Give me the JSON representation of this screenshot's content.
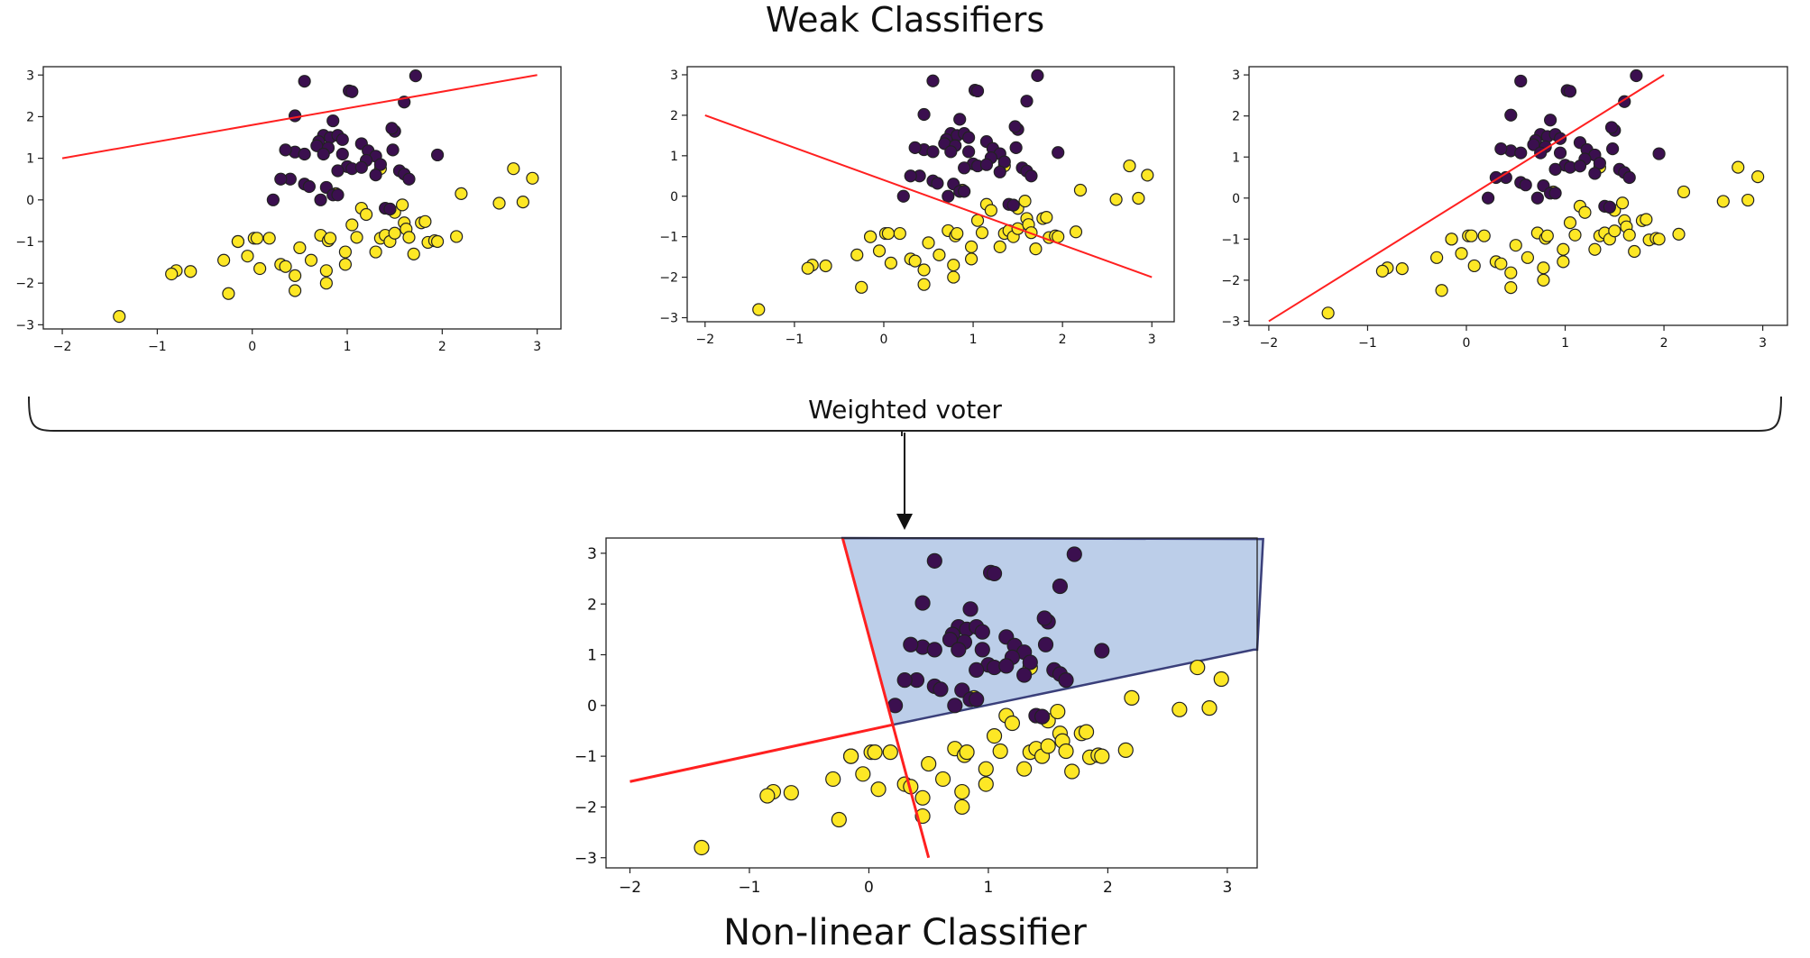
{
  "figure": {
    "title": "Weak Classifiers",
    "connector_label": "Weighted voter",
    "bottom_title": "Non-linear Classifier"
  },
  "colors": {
    "class_dark": "#3b0f4f",
    "class_light": "#fde725",
    "boundary_line": "#ff2020",
    "region_fill": "#b8cbe8",
    "region_edge": "#3a3f7a"
  },
  "chart_data": [
    {
      "type": "scatter",
      "title": "",
      "xlim": [
        -2.2,
        3.25
      ],
      "ylim": [
        -3.1,
        3.2
      ],
      "xticks": [
        -2,
        -1,
        0,
        1,
        2,
        3
      ],
      "yticks": [
        -3,
        -2,
        -1,
        0,
        1,
        2,
        3
      ],
      "lines": [
        {
          "x": [
            -2,
            3
          ],
          "y": [
            1,
            3
          ]
        }
      ]
    },
    {
      "type": "scatter",
      "title": "",
      "xlim": [
        -2.2,
        3.25
      ],
      "ylim": [
        -3.1,
        3.2
      ],
      "xticks": [
        -2,
        -1,
        0,
        1,
        2,
        3
      ],
      "yticks": [
        -3,
        -2,
        -1,
        0,
        1,
        2,
        3
      ],
      "lines": [
        {
          "x": [
            -2,
            3
          ],
          "y": [
            2,
            -2
          ]
        }
      ]
    },
    {
      "type": "scatter",
      "title": "",
      "xlim": [
        -2.2,
        3.25
      ],
      "ylim": [
        -3.1,
        3.2
      ],
      "xticks": [
        -2,
        -1,
        0,
        1,
        2,
        3
      ],
      "yticks": [
        -3,
        -2,
        -1,
        0,
        1,
        2,
        3
      ],
      "lines": [
        {
          "x": [
            -2,
            2
          ],
          "y": [
            -3,
            3
          ]
        }
      ]
    },
    {
      "type": "scatter",
      "title": "",
      "xlim": [
        -2.2,
        3.25
      ],
      "ylim": [
        -3.2,
        3.3
      ],
      "xticks": [
        -2,
        -1,
        0,
        1,
        2,
        3
      ],
      "yticks": [
        -3,
        -2,
        -1,
        0,
        1,
        2,
        3
      ],
      "lines": [
        {
          "x": [
            -2,
            0.2
          ],
          "y": [
            -1.5,
            -0.38
          ]
        },
        {
          "x": [
            -0.22,
            0.2,
            0.5
          ],
          "y": [
            3.3,
            -0.38,
            -3
          ]
        }
      ],
      "region": {
        "x": [
          -0.22,
          3.3,
          3.25,
          3.22,
          0.2
        ],
        "y": [
          3.3,
          3.28,
          1.1,
          1.1,
          -0.38
        ]
      }
    }
  ],
  "points": {
    "dark": [
      [
        0.55,
        2.85
      ],
      [
        1.02,
        2.62
      ],
      [
        1.05,
        2.6
      ],
      [
        1.72,
        2.98
      ],
      [
        1.6,
        2.35
      ],
      [
        0.45,
        2.02
      ],
      [
        0.85,
        1.9
      ],
      [
        0.75,
        1.55
      ],
      [
        0.82,
        1.5
      ],
      [
        0.9,
        1.55
      ],
      [
        0.7,
        1.4
      ],
      [
        0.95,
        1.45
      ],
      [
        0.68,
        1.3
      ],
      [
        0.8,
        1.25
      ],
      [
        1.15,
        1.35
      ],
      [
        1.5,
        1.65
      ],
      [
        1.47,
        1.72
      ],
      [
        0.45,
        1.15
      ],
      [
        0.35,
        1.2
      ],
      [
        0.55,
        1.1
      ],
      [
        0.75,
        1.1
      ],
      [
        0.95,
        1.1
      ],
      [
        1.22,
        1.18
      ],
      [
        1.3,
        1.05
      ],
      [
        1.48,
        1.2
      ],
      [
        1.95,
        1.08
      ],
      [
        1.2,
        0.95
      ],
      [
        1.0,
        0.8
      ],
      [
        1.05,
        0.75
      ],
      [
        1.15,
        0.78
      ],
      [
        0.9,
        0.7
      ],
      [
        1.35,
        0.85
      ],
      [
        1.55,
        0.7
      ],
      [
        1.6,
        0.62
      ],
      [
        1.3,
        0.6
      ],
      [
        0.4,
        0.5
      ],
      [
        0.3,
        0.5
      ],
      [
        0.55,
        0.38
      ],
      [
        0.6,
        0.32
      ],
      [
        0.78,
        0.3
      ],
      [
        0.85,
        0.12
      ],
      [
        0.9,
        0.12
      ],
      [
        1.4,
        -0.2
      ],
      [
        1.45,
        -0.22
      ],
      [
        0.22,
        0.0
      ],
      [
        0.72,
        0.0
      ],
      [
        1.65,
        0.5
      ]
    ],
    "light": [
      [
        -1.4,
        -2.8
      ],
      [
        -0.8,
        -1.7
      ],
      [
        -0.85,
        -1.78
      ],
      [
        -0.65,
        -1.72
      ],
      [
        -0.3,
        -1.45
      ],
      [
        -0.25,
        -2.25
      ],
      [
        -0.15,
        -1.0
      ],
      [
        -0.05,
        -1.35
      ],
      [
        0.02,
        -0.92
      ],
      [
        0.08,
        -1.65
      ],
      [
        0.18,
        -0.92
      ],
      [
        0.3,
        -1.55
      ],
      [
        0.35,
        -1.6
      ],
      [
        0.45,
        -1.82
      ],
      [
        0.45,
        -2.18
      ],
      [
        0.5,
        -1.15
      ],
      [
        0.62,
        -1.45
      ],
      [
        0.72,
        -0.85
      ],
      [
        0.78,
        -1.7
      ],
      [
        0.78,
        -2.0
      ],
      [
        0.8,
        -0.98
      ],
      [
        0.82,
        -0.92
      ],
      [
        0.98,
        -1.25
      ],
      [
        0.98,
        -1.55
      ],
      [
        1.05,
        -0.6
      ],
      [
        1.1,
        -0.9
      ],
      [
        1.15,
        -0.2
      ],
      [
        1.3,
        -1.25
      ],
      [
        1.35,
        -0.92
      ],
      [
        1.4,
        -0.85
      ],
      [
        1.45,
        -1.0
      ],
      [
        1.5,
        -0.8
      ],
      [
        1.5,
        -0.3
      ],
      [
        1.58,
        -0.12
      ],
      [
        1.6,
        -0.55
      ],
      [
        1.62,
        -0.7
      ],
      [
        1.65,
        -0.9
      ],
      [
        1.7,
        -1.3
      ],
      [
        1.78,
        -0.55
      ],
      [
        1.82,
        -0.52
      ],
      [
        1.85,
        -1.02
      ],
      [
        1.92,
        -0.98
      ],
      [
        1.95,
        -1.0
      ],
      [
        2.15,
        -0.88
      ],
      [
        2.2,
        0.15
      ],
      [
        2.6,
        -0.08
      ],
      [
        2.75,
        0.75
      ],
      [
        2.85,
        -0.05
      ],
      [
        2.95,
        0.52
      ],
      [
        1.35,
        0.75
      ],
      [
        0.88,
        0.15
      ],
      [
        0.05,
        -0.92
      ],
      [
        -0.15,
        -1.0
      ],
      [
        1.45,
        -0.22
      ],
      [
        1.2,
        -0.35
      ]
    ]
  }
}
